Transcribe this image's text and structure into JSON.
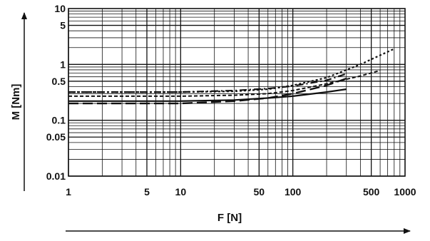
{
  "chart_data": {
    "type": "line",
    "title": "",
    "xlabel": "F [N]",
    "ylabel": "M [Nm]",
    "xscale": "log",
    "yscale": "log",
    "xlim": [
      1,
      1000
    ],
    "ylim": [
      0.01,
      10
    ],
    "grid": true,
    "x_tick_labels": [
      "1",
      "5",
      "10",
      "50",
      "100",
      "500",
      "1000"
    ],
    "x_tick_values": [
      1,
      5,
      10,
      50,
      100,
      500,
      1000
    ],
    "y_tick_labels": [
      "10",
      "5",
      "1",
      "0.5",
      "0.1",
      "0.05",
      "0.01"
    ],
    "y_tick_values": [
      10,
      5,
      1,
      0.5,
      0.1,
      0.05,
      0.01
    ],
    "series": [
      {
        "style": "dotted",
        "color": "#111111",
        "x": [
          1,
          10,
          30,
          60,
          100,
          200,
          400,
          800
        ],
        "y": [
          0.32,
          0.32,
          0.33,
          0.36,
          0.42,
          0.58,
          1.0,
          1.9
        ]
      },
      {
        "style": "dashdot",
        "color": "#111111",
        "x": [
          1,
          10,
          30,
          60,
          100,
          200,
          300
        ],
        "y": [
          0.32,
          0.32,
          0.34,
          0.37,
          0.41,
          0.52,
          0.68
        ]
      },
      {
        "style": "dashed-fine",
        "color": "#111111",
        "x": [
          1,
          10,
          30,
          60,
          100,
          200,
          400,
          600
        ],
        "y": [
          0.27,
          0.27,
          0.28,
          0.3,
          0.34,
          0.45,
          0.62,
          0.78
        ]
      },
      {
        "style": "longdash",
        "color": "#111111",
        "x": [
          1,
          10,
          30,
          60,
          100,
          200,
          300
        ],
        "y": [
          0.2,
          0.2,
          0.22,
          0.25,
          0.3,
          0.42,
          0.56
        ]
      },
      {
        "style": "solid",
        "color": "#111111",
        "x": [
          1,
          10,
          30,
          60,
          100,
          200,
          300
        ],
        "y": [
          0.22,
          0.22,
          0.23,
          0.25,
          0.27,
          0.32,
          0.36
        ]
      }
    ]
  }
}
